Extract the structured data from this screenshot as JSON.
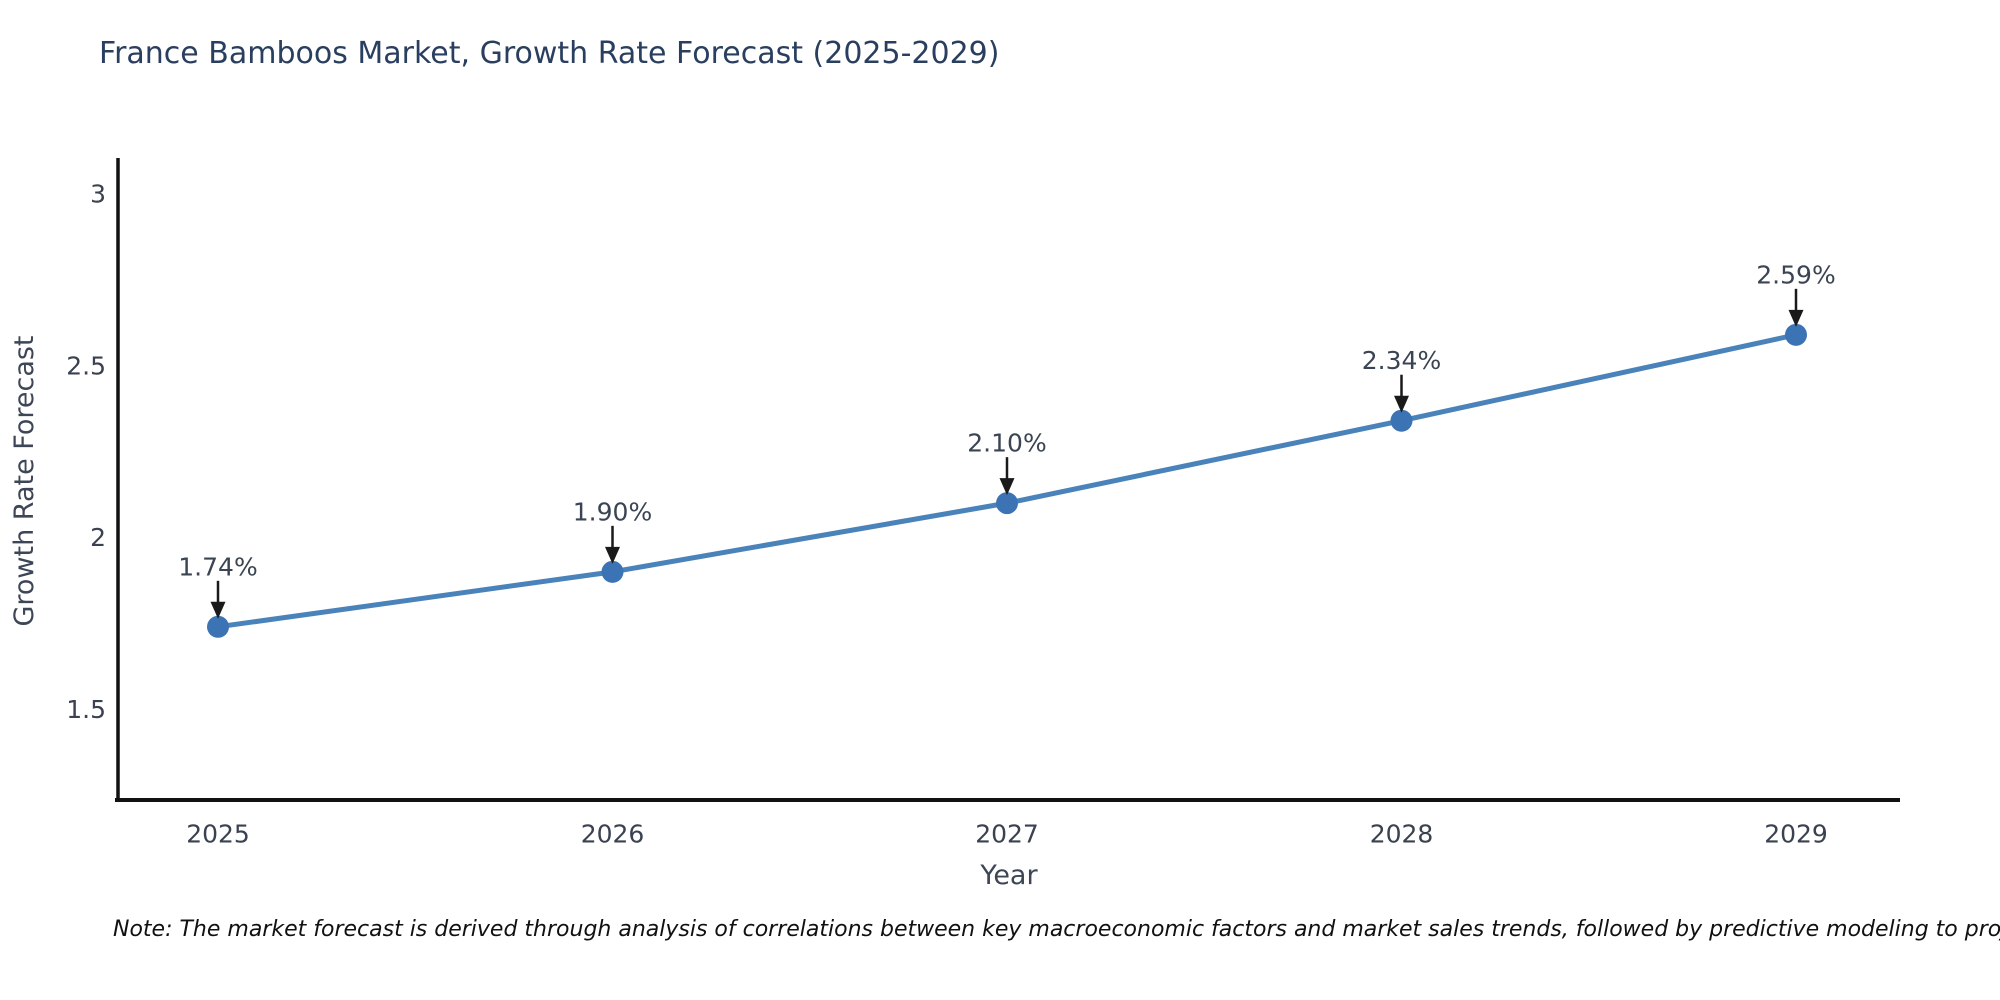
{
  "title": "France Bamboos Market, Growth Rate Forecast (2025-2029)",
  "note": "Note: The market forecast is derived through analysis of correlations between key macroeconomic factors and market sales trends, followed by predictive modeling to project future sales",
  "chart_data": {
    "type": "line",
    "title": "France Bamboos Market, Growth Rate Forecast (2025-2029)",
    "xlabel": "Year",
    "ylabel": "Growth Rate Forecast",
    "x": [
      2025,
      2026,
      2027,
      2028,
      2029
    ],
    "categories": [
      "2025",
      "2026",
      "2027",
      "2028",
      "2029"
    ],
    "series": [
      {
        "name": "Growth Rate Forecast",
        "values": [
          1.74,
          1.9,
          2.1,
          2.34,
          2.59
        ]
      }
    ],
    "point_labels": [
      "1.74%",
      "1.90%",
      "2.10%",
      "2.34%",
      "2.59%"
    ],
    "yticks": [
      1.5,
      2,
      2.5,
      3
    ],
    "ytick_labels": [
      "1.5",
      "2",
      "2.5",
      "3"
    ],
    "ylim": [
      1.24,
      3.1
    ],
    "xlim": [
      2024.75,
      2029.26
    ],
    "grid": false,
    "legend": "none",
    "annotation_style": "value labels above points with downward arrows",
    "colors": {
      "line": "#4a82ba",
      "marker": "#3c73b4",
      "axis": "#111111",
      "arrow": "#1a1a1a",
      "title": "#2a3f5f",
      "tick": "#3a4150",
      "axis_label": "#3d4656",
      "annotation": "#3a4453",
      "note": "#111111",
      "background": "#ffffff"
    }
  }
}
